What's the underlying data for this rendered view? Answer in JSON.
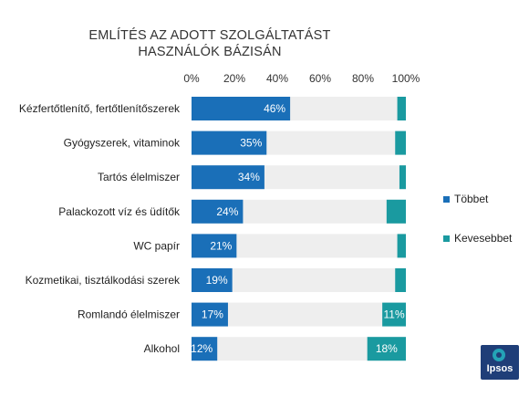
{
  "chart_data": {
    "type": "bar",
    "orientation": "horizontal",
    "stacked": true,
    "title": "EMLÍTÉS AZ ADOTT SZOLGÁLTATÁST HASZNÁLÓK BÁZISÁN",
    "title_lines": [
      "EMLÍTÉS AZ ADOTT SZOLGÁLTATÁST",
      "HASZNÁLÓK BÁZISÁN"
    ],
    "categories": [
      "Kézfertőtlenítő, fertőtlenítőszerek",
      "Gyógyszerek, vitaminok",
      "Tartós élelmiszer",
      "Palackozott víz és üdítők",
      "WC papír",
      "Kozmetikai, tisztálkodási szerek",
      "Romlandó élelmiszer",
      "Alkohol"
    ],
    "series": [
      {
        "name": "Többet",
        "color": "#1a6fb8",
        "values": [
          46,
          35,
          34,
          24,
          21,
          19,
          17,
          12
        ],
        "labels": [
          "46%",
          "35%",
          "34%",
          "24%",
          "21%",
          "19%",
          "17%",
          "12%"
        ]
      },
      {
        "name": "Kevesebbet",
        "color": "#1a9aa0",
        "values": [
          4,
          5,
          3,
          9,
          4,
          5,
          11,
          18
        ],
        "labels": [
          "",
          "",
          "",
          "",
          "",
          "",
          "11%",
          "18%"
        ]
      }
    ],
    "xlim": [
      0,
      100
    ],
    "xticks": [
      "0%",
      "20%",
      "40%",
      "60%",
      "80%",
      "100%"
    ],
    "background_bar_color": "#eeeeee",
    "grid": false,
    "legend_position": "right"
  },
  "logo": {
    "text": "Ipsos"
  }
}
